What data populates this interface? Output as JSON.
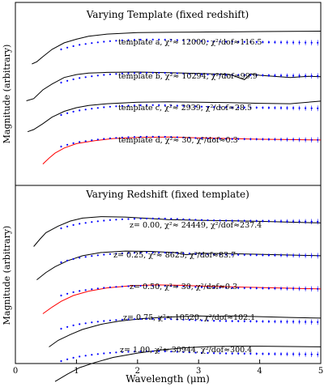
{
  "chart_data": [
    {
      "type": "line",
      "title": "Varying Template (fixed redshift)",
      "xlabel": "",
      "ylabel": "Magnitude (arbitrary)",
      "xlim": [
        0,
        5
      ],
      "xticks": [],
      "grid": false,
      "series": [
        {
          "id": "a",
          "color": "#000000",
          "curve_x": [
            0.27,
            0.35,
            0.45,
            0.6,
            0.8,
            1.0,
            1.2,
            1.5,
            2.0,
            2.5,
            3.0,
            3.5,
            4.0,
            4.5,
            5.0
          ],
          "curve_y": [
            -3.0,
            -2.7,
            -2.0,
            -1.0,
            -0.1,
            0.4,
            0.8,
            1.1,
            1.3,
            1.35,
            1.38,
            1.4,
            1.45,
            1.48,
            1.5
          ],
          "annotation": "template a,  χ²≈ 12000,  χ²/dof≈116.5"
        },
        {
          "id": "b",
          "color": "#000000",
          "curve_x": [
            0.18,
            0.3,
            0.45,
            0.6,
            0.8,
            1.0,
            1.2,
            1.5,
            2.0,
            2.5,
            3.0,
            3.5,
            3.75,
            3.85,
            4.0,
            4.5,
            4.8,
            5.0
          ],
          "curve_y": [
            -3.5,
            -3.2,
            -2.0,
            -1.2,
            -0.3,
            0.1,
            0.3,
            0.4,
            0.45,
            0.35,
            0.25,
            0.15,
            -0.6,
            0.2,
            0.0,
            -0.3,
            -0.15,
            -0.2
          ],
          "annotation": "template b,  χ²≈ 10294,  χ²/dof≈99.9"
        },
        {
          "id": "c",
          "color": "#000000",
          "curve_x": [
            0.2,
            0.3,
            0.45,
            0.6,
            0.8,
            1.0,
            1.2,
            1.5,
            2.0,
            2.5,
            3.0,
            3.5,
            4.0,
            4.5,
            5.0
          ],
          "curve_y": [
            -3.3,
            -3.0,
            -2.2,
            -1.3,
            -0.5,
            0.0,
            0.3,
            0.55,
            0.75,
            0.8,
            0.75,
            0.7,
            0.6,
            0.55,
            0.9
          ],
          "annotation": "template c,  χ²≈ 2939,  χ²/dof≈28.5"
        },
        {
          "id": "d",
          "color": "#ff0000",
          "curve_x": [
            0.45,
            0.55,
            0.65,
            0.8,
            1.0,
            1.3,
            1.6,
            2.0,
            2.5,
            3.0,
            3.5,
            4.0,
            4.5,
            5.0
          ],
          "curve_y": [
            -3.4,
            -2.6,
            -1.9,
            -1.2,
            -0.6,
            -0.2,
            0.1,
            0.25,
            0.3,
            0.2,
            0.1,
            0.0,
            -0.05,
            -0.1
          ],
          "annotation": "template d,  χ²≈ 30,  χ²/dof≈0.3"
        }
      ]
    },
    {
      "type": "line",
      "title": "Varying Redshift (fixed template)",
      "xlabel": "Wavelength (μm)",
      "ylabel": "Magnitude (arbitrary)",
      "xlim": [
        0,
        5
      ],
      "xticks": [
        0,
        1,
        2,
        3,
        4,
        5
      ],
      "grid": false,
      "series": [
        {
          "id": "z0.00",
          "color": "#000000",
          "curve_x": [
            0.3,
            0.4,
            0.5,
            0.7,
            0.9,
            1.1,
            1.4,
            1.8,
            2.2,
            2.5,
            3.0,
            3.5,
            4.0,
            4.5,
            5.0
          ],
          "curve_y": [
            -3.5,
            -2.5,
            -1.6,
            -0.7,
            0.0,
            0.4,
            0.6,
            0.55,
            0.35,
            0.2,
            0.1,
            0.05,
            -0.05,
            -0.15,
            -0.25
          ],
          "annotation": "z= 0.00,  χ²≈ 24449,  χ²/dof≈237.4"
        },
        {
          "id": "z0.25",
          "color": "#000000",
          "curve_x": [
            0.35,
            0.5,
            0.65,
            0.85,
            1.1,
            1.4,
            1.8,
            2.2,
            2.6,
            2.8,
            3.0,
            3.5,
            4.0,
            4.5,
            5.0
          ],
          "curve_y": [
            -3.4,
            -2.4,
            -1.6,
            -0.8,
            -0.1,
            0.35,
            0.55,
            0.5,
            0.35,
            0.05,
            0.25,
            0.2,
            0.1,
            0.0,
            -0.1
          ],
          "annotation": "z= 0.25,  χ²≈ 8625,  χ²/dof≈83.7"
        },
        {
          "id": "z0.50",
          "color": "#ff0000",
          "curve_x": [
            0.45,
            0.6,
            0.75,
            0.95,
            1.2,
            1.5,
            1.9,
            2.3,
            2.7,
            3.0,
            3.5,
            4.0,
            4.5,
            5.0
          ],
          "curve_y": [
            -3.5,
            -2.6,
            -1.8,
            -1.0,
            -0.4,
            0.05,
            0.35,
            0.45,
            0.4,
            0.3,
            0.2,
            0.1,
            0.0,
            -0.1
          ],
          "annotation": "z= 0.50,  χ²≈ 30,  χ²/dof≈0.3"
        },
        {
          "id": "z0.75",
          "color": "#000000",
          "curve_x": [
            0.55,
            0.7,
            0.9,
            1.1,
            1.4,
            1.7,
            2.1,
            2.5,
            3.0,
            3.3,
            3.5,
            4.0,
            4.5,
            5.0
          ],
          "curve_y": [
            -3.5,
            -2.6,
            -1.8,
            -1.1,
            -0.4,
            0.05,
            0.4,
            0.6,
            0.75,
            0.7,
            0.75,
            0.65,
            0.55,
            0.45
          ],
          "annotation": "z= 0.75,  χ²≈ 10520,  χ²/dof≈102.1"
        },
        {
          "id": "z1.00",
          "color": "#000000",
          "curve_x": [
            0.65,
            0.85,
            1.05,
            1.3,
            1.6,
            2.0,
            2.4,
            2.8,
            3.2,
            3.6,
            4.0,
            4.5,
            5.0
          ],
          "curve_y": [
            -3.8,
            -2.8,
            -1.9,
            -1.2,
            -0.5,
            0.1,
            0.55,
            0.85,
            1.0,
            1.05,
            1.05,
            1.0,
            0.95
          ],
          "annotation": "z= 1.00,  χ²≈ 30944,  χ²/dof≈300.4"
        }
      ]
    }
  ],
  "observed_data": {
    "color": "#0000ff",
    "fit_color": "#ff00ff",
    "x": [
      0.75,
      0.85,
      0.95,
      1.05,
      1.15,
      1.25,
      1.35,
      1.45,
      1.55,
      1.65,
      1.75,
      1.85,
      1.95,
      2.05,
      2.15,
      2.25,
      2.35,
      2.45,
      2.55,
      2.65,
      2.75,
      2.85,
      2.95,
      3.05,
      3.15,
      3.25,
      3.35,
      3.45,
      3.55,
      3.65,
      3.75,
      3.85,
      3.95,
      4.05,
      4.15,
      4.25,
      4.35,
      4.45,
      4.55,
      4.65,
      4.75,
      4.85,
      4.95
    ],
    "y": [
      -1.0,
      -0.75,
      -0.55,
      -0.38,
      -0.25,
      -0.13,
      -0.03,
      0.06,
      0.13,
      0.19,
      0.24,
      0.28,
      0.31,
      0.33,
      0.34,
      0.35,
      0.34,
      0.33,
      0.31,
      0.28,
      0.25,
      0.21,
      0.17,
      0.14,
      0.11,
      0.09,
      0.07,
      0.06,
      0.05,
      0.04,
      0.03,
      0.02,
      0.01,
      0.0,
      -0.01,
      -0.02,
      -0.03,
      -0.04,
      -0.05,
      -0.06,
      -0.07,
      -0.08,
      -0.09
    ],
    "err": [
      0.12,
      0.09,
      0.07,
      0.06,
      0.05,
      0.05,
      0.05,
      0.05,
      0.05,
      0.06,
      0.06,
      0.06,
      0.06,
      0.07,
      0.07,
      0.08,
      0.08,
      0.08,
      0.08,
      0.09,
      0.09,
      0.1,
      0.1,
      0.11,
      0.12,
      0.12,
      0.13,
      0.14,
      0.15,
      0.16,
      0.17,
      0.18,
      0.19,
      0.2,
      0.22,
      0.24,
      0.26,
      0.28,
      0.3,
      0.32,
      0.34,
      0.36,
      0.38
    ]
  },
  "panel_texts": {
    "top_title": "Varying Template (fixed redshift)",
    "bottom_title": "Varying Redshift (fixed template)",
    "ylabel": "Magnitude (arbitrary)",
    "xlabel": "Wavelength (μm)",
    "xtick_labels": [
      "0",
      "1",
      "2",
      "3",
      "4",
      "5"
    ]
  }
}
